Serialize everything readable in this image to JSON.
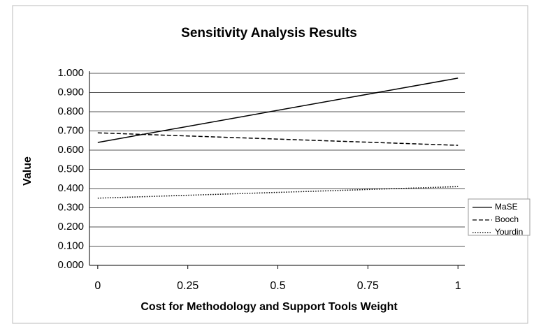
{
  "chart_data": {
    "type": "line",
    "title": "Sensitivity Analysis Results",
    "x_label": "Cost for Methodology and Support Tools Weight",
    "y_label": "Value",
    "x": [
      0,
      1
    ],
    "series": [
      {
        "name": "MaSE",
        "color": "#000000",
        "style": "solid",
        "values": [
          0.64,
          0.975
        ]
      },
      {
        "name": "Booch",
        "color": "#000000",
        "style": "dashed",
        "values": [
          0.69,
          0.625
        ]
      },
      {
        "name": "Yourdin",
        "color": "#000000",
        "style": "dotted",
        "values": [
          0.35,
          0.41
        ]
      }
    ],
    "xlim": [
      -0.023,
      1.019
    ],
    "xticks": [
      0,
      0.25,
      0.5,
      0.75,
      1
    ],
    "ylim": [
      0,
      1
    ],
    "yticks": [
      {
        "value": 0,
        "label": "0.000"
      },
      {
        "value": 0.1,
        "label": "0.100"
      },
      {
        "value": 0.2,
        "label": "0.200"
      },
      {
        "value": 0.3,
        "label": "0.300"
      },
      {
        "value": 0.4,
        "label": "0.400"
      },
      {
        "value": 0.5,
        "label": "0.500"
      },
      {
        "value": 0.6,
        "label": "0.600"
      },
      {
        "value": 0.7,
        "label": "0.700"
      },
      {
        "value": 0.8,
        "label": "0.800"
      },
      {
        "value": 0.9,
        "label": "0.900"
      },
      {
        "value": 1,
        "label": "1.000"
      }
    ],
    "grid": true,
    "legend": "right"
  }
}
